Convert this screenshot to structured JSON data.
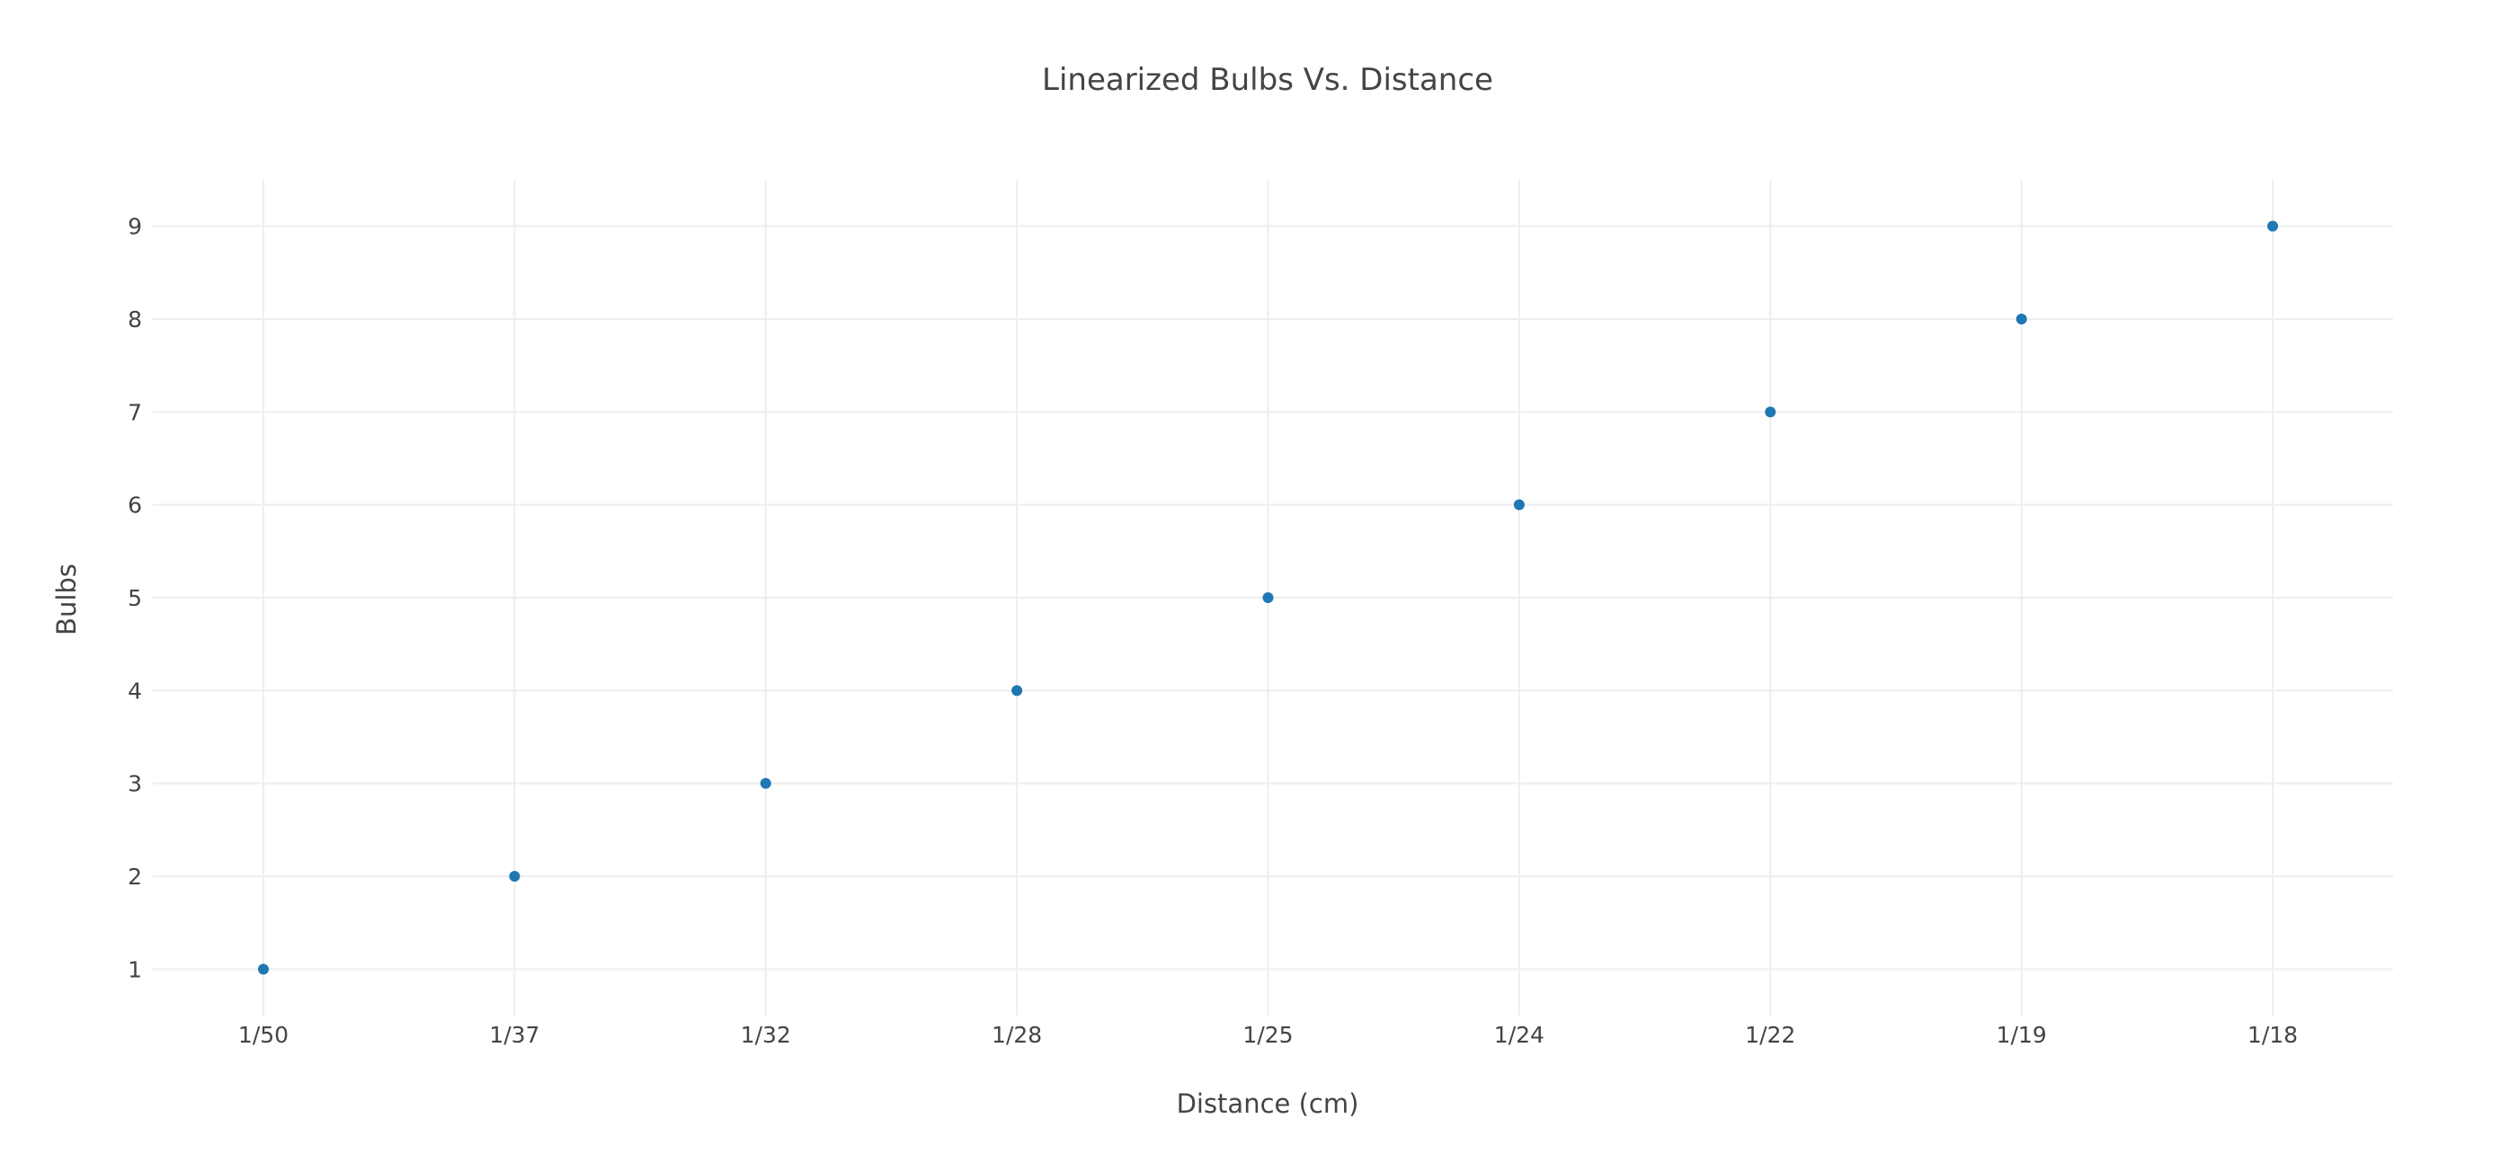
{
  "chart_data": {
    "type": "scatter",
    "title": "Linearized Bulbs Vs. Distance",
    "xlabel": "Distance (cm)",
    "ylabel": "Bulbs",
    "x": [
      "1/50",
      "1/37",
      "1/32",
      "1/28",
      "1/25",
      "1/24",
      "1/22",
      "1/19",
      "1/18"
    ],
    "series": [
      {
        "values": [
          1,
          2,
          3,
          4,
          5,
          6,
          7,
          8,
          9
        ]
      }
    ],
    "x_axis_type": "category",
    "ylim": [
      0.5,
      9.5
    ],
    "yticks": [
      1,
      2,
      3,
      4,
      5,
      6,
      7,
      8,
      9
    ],
    "grid": true,
    "legend": "none",
    "marker_color": "#1f77b4",
    "grid_color": "#eeeeee",
    "text_color": "#444444"
  }
}
